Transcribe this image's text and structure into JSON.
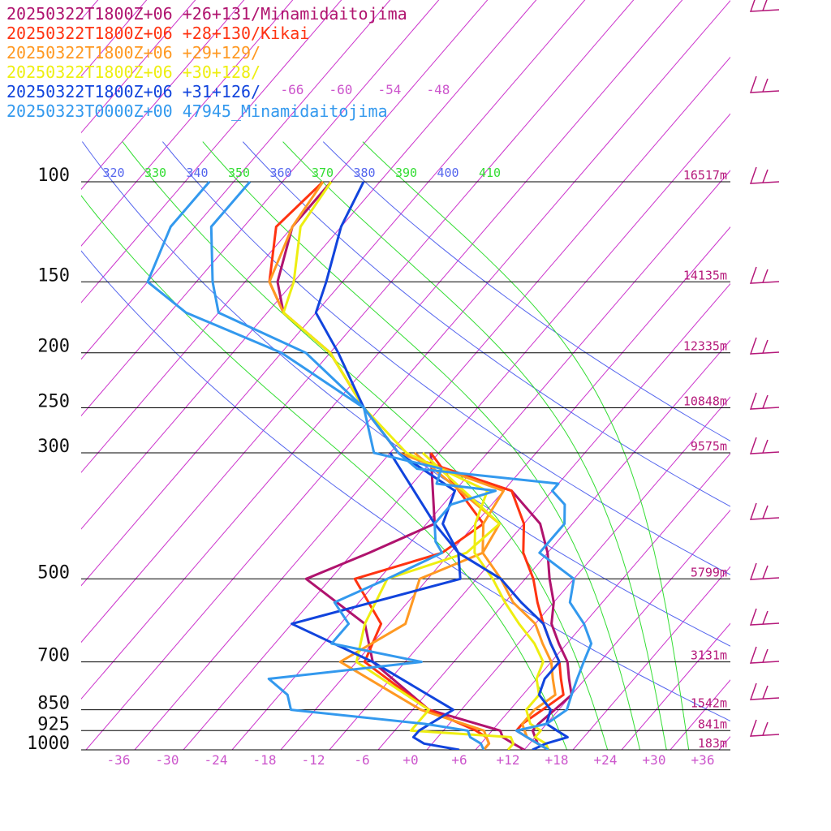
{
  "colors": {
    "isotherm": "#cc33cc",
    "dry_adiabat": "#5566ee",
    "moist_adiabat": "#33dd33",
    "isobar": "#000000",
    "height_label": "#b5197a",
    "axis_label": "#cc55cc",
    "barb": "#b5197a"
  },
  "chart_data": {
    "type": "line",
    "chart_kind": "skew-T log-p sounding",
    "title": "",
    "xlabel": "",
    "ylabel": "",
    "x_ticks": [
      "-36",
      "-30",
      "-24",
      "-18",
      "-12",
      "-6",
      "+0",
      "+6",
      "+12",
      "+18",
      "+24",
      "+30",
      "+36"
    ],
    "x_tick_values": [
      -36,
      -30,
      -24,
      -18,
      -12,
      -6,
      0,
      6,
      12,
      18,
      24,
      30,
      36
    ],
    "pressure_levels": [
      100,
      150,
      200,
      250,
      300,
      500,
      700,
      850,
      925,
      1000
    ],
    "pressure_labels": [
      "100",
      "150",
      "200",
      "250",
      "300",
      "500",
      "700",
      "850",
      "925",
      "1000"
    ],
    "height_labels": [
      "16517m",
      "14135m",
      "12335m",
      "10848m",
      "9575m",
      "5799m",
      "3131m",
      "1542m",
      "841m",
      "183m"
    ],
    "top_isotherm_labels": [
      "-66",
      "-60",
      "-54",
      "-48"
    ],
    "top_isotherm_values": [
      -66,
      -60,
      -54,
      -48
    ],
    "theta_labels": [
      "320",
      "330",
      "340",
      "350",
      "360",
      "370",
      "380",
      "390",
      "400",
      "410"
    ],
    "theta_label_types": [
      "dry",
      "moist",
      "dry",
      "moist",
      "dry",
      "moist",
      "dry",
      "moist",
      "dry",
      "moist"
    ],
    "moist_adiabats": [
      330,
      350,
      370,
      390,
      410
    ],
    "dry_adiabats": [
      320,
      340,
      360,
      380,
      400
    ],
    "scale": {
      "p_top": 100,
      "p_bottom": 1000
    },
    "grid": true,
    "legend_position": "top-left",
    "series": [
      {
        "name": "20250322T1800Z+06 +26+131/Minamidaitojima",
        "color": "#b0136e",
        "temperature": [
          [
            1000,
            17
          ],
          [
            975,
            15
          ],
          [
            950,
            14
          ],
          [
            925,
            13
          ],
          [
            900,
            13
          ],
          [
            850,
            13.5
          ],
          [
            800,
            14
          ],
          [
            750,
            12
          ],
          [
            700,
            10
          ],
          [
            650,
            7
          ],
          [
            600,
            4
          ],
          [
            550,
            2
          ],
          [
            500,
            -1
          ],
          [
            450,
            -4
          ],
          [
            400,
            -8
          ],
          [
            350,
            -15
          ],
          [
            300,
            -33
          ],
          [
            250,
            -42
          ],
          [
            200,
            -52
          ],
          [
            170,
            -62
          ],
          [
            150,
            -66
          ],
          [
            120,
            -70
          ],
          [
            100,
            -70
          ]
        ],
        "dewpoint": [
          [
            1000,
            14
          ],
          [
            975,
            12
          ],
          [
            950,
            10
          ],
          [
            925,
            9
          ],
          [
            850,
            -2
          ],
          [
            700,
            -14
          ],
          [
            600,
            -19
          ],
          [
            500,
            -31
          ],
          [
            450,
            -26
          ],
          [
            400,
            -21
          ],
          [
            300,
            -29
          ]
        ]
      },
      {
        "name": "20250322T1800Z+06 +28+130/Kikai",
        "color": "#ff3311",
        "temperature": [
          [
            1000,
            17
          ],
          [
            975,
            15
          ],
          [
            950,
            13
          ],
          [
            925,
            11
          ],
          [
            900,
            11
          ],
          [
            850,
            12
          ],
          [
            800,
            13
          ],
          [
            750,
            11
          ],
          [
            700,
            9
          ],
          [
            650,
            6
          ],
          [
            600,
            3
          ],
          [
            550,
            0
          ],
          [
            500,
            -3
          ],
          [
            450,
            -7
          ],
          [
            400,
            -10
          ],
          [
            350,
            -15
          ],
          [
            300,
            -33
          ],
          [
            250,
            -42
          ],
          [
            200,
            -52
          ],
          [
            170,
            -62
          ],
          [
            150,
            -67
          ],
          [
            120,
            -72
          ],
          [
            100,
            -71
          ]
        ],
        "dewpoint": [
          [
            1000,
            9
          ],
          [
            975,
            9
          ],
          [
            950,
            8
          ],
          [
            925,
            6
          ],
          [
            850,
            -2
          ],
          [
            700,
            -15
          ],
          [
            600,
            -17
          ],
          [
            500,
            -25
          ],
          [
            450,
            -17
          ],
          [
            400,
            -15
          ],
          [
            300,
            -29
          ]
        ]
      },
      {
        "name": "20250322T1800Z+06 +29+129/",
        "color": "#ff9922",
        "temperature": [
          [
            1000,
            17
          ],
          [
            975,
            15
          ],
          [
            950,
            13
          ],
          [
            925,
            12
          ],
          [
            900,
            11
          ],
          [
            850,
            11
          ],
          [
            800,
            12
          ],
          [
            750,
            10
          ],
          [
            700,
            8
          ],
          [
            650,
            5
          ],
          [
            600,
            2
          ],
          [
            550,
            -3
          ],
          [
            500,
            -7
          ],
          [
            450,
            -12
          ],
          [
            400,
            -15
          ],
          [
            350,
            -16
          ],
          [
            300,
            -33
          ],
          [
            250,
            -42
          ],
          [
            200,
            -52
          ],
          [
            170,
            -62
          ],
          [
            150,
            -67
          ],
          [
            120,
            -70
          ],
          [
            100,
            -71
          ]
        ],
        "dewpoint": [
          [
            1000,
            9
          ],
          [
            975,
            9
          ],
          [
            950,
            8
          ],
          [
            925,
            7
          ],
          [
            850,
            -3
          ],
          [
            700,
            -18
          ],
          [
            600,
            -14
          ],
          [
            500,
            -17
          ],
          [
            450,
            -12
          ],
          [
            400,
            -13
          ],
          [
            300,
            -31
          ]
        ]
      },
      {
        "name": "20250322T1800Z+06 +30+128/",
        "color": "#eeee11",
        "temperature": [
          [
            1000,
            17
          ],
          [
            975,
            16
          ],
          [
            950,
            14
          ],
          [
            925,
            14
          ],
          [
            900,
            12
          ],
          [
            850,
            10
          ],
          [
            800,
            10
          ],
          [
            750,
            8
          ],
          [
            700,
            7
          ],
          [
            650,
            4
          ],
          [
            600,
            0
          ],
          [
            550,
            -4
          ],
          [
            500,
            -8
          ],
          [
            450,
            -13
          ],
          [
            400,
            -16
          ],
          [
            350,
            -18
          ],
          [
            300,
            -32
          ],
          [
            250,
            -42
          ],
          [
            200,
            -52
          ],
          [
            170,
            -62
          ],
          [
            150,
            -64
          ],
          [
            120,
            -69
          ],
          [
            100,
            -70
          ]
        ],
        "dewpoint": [
          [
            1000,
            12
          ],
          [
            975,
            12
          ],
          [
            950,
            11
          ],
          [
            925,
            -2
          ],
          [
            850,
            -2
          ],
          [
            700,
            -16
          ],
          [
            600,
            -19
          ],
          [
            500,
            -21
          ],
          [
            450,
            -14
          ],
          [
            400,
            -13
          ],
          [
            300,
            -30
          ]
        ]
      },
      {
        "name": "20250322T1800Z+06 +31+126/",
        "color": "#1144dd",
        "temperature": [
          [
            1000,
            15
          ],
          [
            975,
            16
          ],
          [
            950,
            18
          ],
          [
            925,
            16
          ],
          [
            900,
            14
          ],
          [
            850,
            13
          ],
          [
            800,
            10
          ],
          [
            750,
            9
          ],
          [
            700,
            9
          ],
          [
            650,
            6
          ],
          [
            600,
            3
          ],
          [
            550,
            -2
          ],
          [
            500,
            -7
          ],
          [
            450,
            -15
          ],
          [
            400,
            -20
          ],
          [
            350,
            -22
          ],
          [
            300,
            -33
          ],
          [
            250,
            -42
          ],
          [
            200,
            -51
          ],
          [
            170,
            -58
          ],
          [
            150,
            -60
          ],
          [
            120,
            -64
          ],
          [
            100,
            -66
          ]
        ],
        "dewpoint": [
          [
            1000,
            6
          ],
          [
            975,
            1
          ],
          [
            950,
            -1
          ],
          [
            925,
            -1
          ],
          [
            850,
            1
          ],
          [
            700,
            -14
          ],
          [
            600,
            -28
          ],
          [
            500,
            -12
          ],
          [
            450,
            -15
          ],
          [
            400,
            -21
          ],
          [
            300,
            -34
          ]
        ]
      },
      {
        "name": "20250323T0000Z+00 47945_Minamidaitojima",
        "color": "#3399ee",
        "temperature": [
          [
            1000,
            17
          ],
          [
            975,
            15
          ],
          [
            950,
            13
          ],
          [
            925,
            11
          ],
          [
            900,
            14
          ],
          [
            850,
            15
          ],
          [
            800,
            14
          ],
          [
            750,
            13
          ],
          [
            700,
            12
          ],
          [
            650,
            11
          ],
          [
            600,
            8
          ],
          [
            550,
            4
          ],
          [
            500,
            2
          ],
          [
            450,
            -5
          ],
          [
            430,
            -5
          ],
          [
            400,
            -5
          ],
          [
            370,
            -7
          ],
          [
            350,
            -10
          ],
          [
            340,
            -10
          ],
          [
            320,
            -29
          ],
          [
            300,
            -33
          ],
          [
            250,
            -42
          ],
          [
            200,
            -55
          ],
          [
            170,
            -70
          ],
          [
            150,
            -74
          ],
          [
            120,
            -80
          ],
          [
            100,
            -80
          ]
        ],
        "dewpoint": [
          [
            1000,
            9
          ],
          [
            975,
            8
          ],
          [
            950,
            6
          ],
          [
            925,
            5
          ],
          [
            900,
            -1
          ],
          [
            850,
            -19
          ],
          [
            800,
            -21
          ],
          [
            750,
            -25
          ],
          [
            700,
            -8
          ],
          [
            650,
            -21
          ],
          [
            600,
            -21
          ],
          [
            550,
            -25
          ],
          [
            500,
            -21
          ],
          [
            450,
            -17
          ],
          [
            430,
            -19
          ],
          [
            400,
            -21
          ],
          [
            370,
            -21
          ],
          [
            350,
            -17
          ],
          [
            340,
            -25
          ],
          [
            320,
            -26
          ],
          [
            300,
            -36
          ],
          [
            250,
            -42
          ],
          [
            200,
            -58
          ],
          [
            170,
            -74
          ],
          [
            150,
            -82
          ],
          [
            120,
            -85
          ],
          [
            100,
            -85
          ]
        ]
      }
    ]
  }
}
